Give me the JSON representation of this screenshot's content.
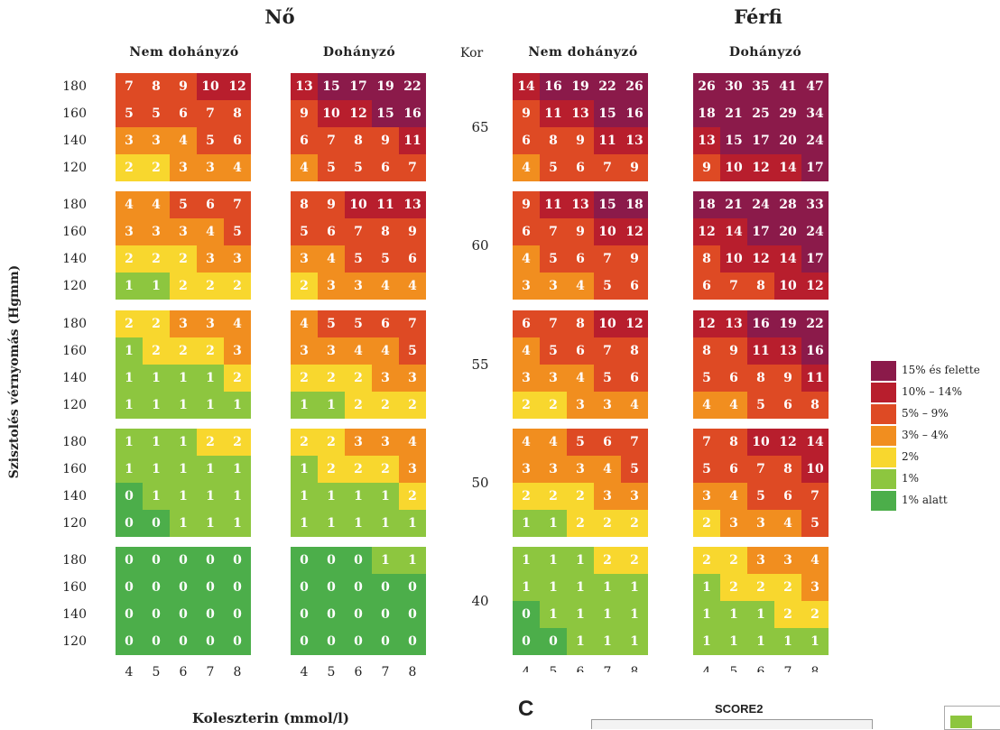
{
  "header": {
    "female": "Nő",
    "male": "Férfi",
    "nonsmoker": "Nem dohányzó",
    "smoker": "Dohányzó",
    "kor": "Kor"
  },
  "axis": {
    "ylabel": "Szisztolés vérnyomás (Hgmm)",
    "xlabel": "Koleszterin (mmol/l)",
    "bp_rows": [
      "180",
      "160",
      "140",
      "120"
    ],
    "chol_ticks": [
      "4",
      "5",
      "6",
      "7",
      "8"
    ]
  },
  "fragments": {
    "panel_c": "C",
    "score2": "SCORE2"
  },
  "legend": [
    {
      "label": "15% és felette",
      "color": "#8B1A4A"
    },
    {
      "label": "10% – 14%",
      "color": "#B81E2D"
    },
    {
      "label": "5% – 9%",
      "color": "#DE4A24"
    },
    {
      "label": "3% – 4%",
      "color": "#F18E1F"
    },
    {
      "label": "2%",
      "color": "#F8D72E"
    },
    {
      "label": "1%",
      "color": "#8DC63F"
    },
    {
      "label": "1% alatt",
      "color": "#4CAE4A"
    }
  ],
  "chart_data": {
    "type": "heatmap",
    "title": "",
    "xlabel": "Koleszterin (mmol/l)",
    "ylabel": "Szisztolés vérnyomás (Hgmm)",
    "x_categories": [
      "4",
      "5",
      "6",
      "7",
      "8"
    ],
    "y_categories": [
      "180",
      "160",
      "140",
      "120"
    ],
    "ages": [
      "65",
      "60",
      "55",
      "50",
      "40"
    ],
    "groups": [
      {
        "sex": "Nő",
        "smoking": "Nem dohányzó",
        "panels": [
          [
            [
              7,
              8,
              9,
              10,
              12
            ],
            [
              5,
              5,
              6,
              7,
              8
            ],
            [
              3,
              3,
              4,
              5,
              6
            ],
            [
              2,
              2,
              3,
              3,
              4
            ]
          ],
          [
            [
              4,
              4,
              5,
              6,
              7
            ],
            [
              3,
              3,
              3,
              4,
              5
            ],
            [
              2,
              2,
              2,
              3,
              3
            ],
            [
              1,
              1,
              2,
              2,
              2
            ]
          ],
          [
            [
              2,
              2,
              3,
              3,
              4
            ],
            [
              1,
              2,
              2,
              2,
              3
            ],
            [
              1,
              1,
              1,
              1,
              2
            ],
            [
              1,
              1,
              1,
              1,
              1
            ]
          ],
          [
            [
              1,
              1,
              1,
              2,
              2
            ],
            [
              1,
              1,
              1,
              1,
              1
            ],
            [
              0,
              1,
              1,
              1,
              1
            ],
            [
              0,
              0,
              1,
              1,
              1
            ]
          ],
          [
            [
              0,
              0,
              0,
              0,
              0
            ],
            [
              0,
              0,
              0,
              0,
              0
            ],
            [
              0,
              0,
              0,
              0,
              0
            ],
            [
              0,
              0,
              0,
              0,
              0
            ]
          ]
        ]
      },
      {
        "sex": "Nő",
        "smoking": "Dohányzó",
        "panels": [
          [
            [
              13,
              15,
              17,
              19,
              22
            ],
            [
              9,
              10,
              12,
              15,
              16
            ],
            [
              6,
              7,
              8,
              9,
              11
            ],
            [
              4,
              5,
              5,
              6,
              7
            ]
          ],
          [
            [
              8,
              9,
              10,
              11,
              13
            ],
            [
              5,
              6,
              7,
              8,
              9
            ],
            [
              3,
              4,
              5,
              5,
              6
            ],
            [
              2,
              3,
              3,
              4,
              4
            ]
          ],
          [
            [
              4,
              5,
              5,
              6,
              7
            ],
            [
              3,
              3,
              4,
              4,
              5
            ],
            [
              2,
              2,
              2,
              3,
              3
            ],
            [
              1,
              1,
              2,
              2,
              2
            ]
          ],
          [
            [
              2,
              2,
              3,
              3,
              4
            ],
            [
              1,
              2,
              2,
              2,
              3
            ],
            [
              1,
              1,
              1,
              1,
              2
            ],
            [
              1,
              1,
              1,
              1,
              1
            ]
          ],
          [
            [
              0,
              0,
              0,
              1,
              1
            ],
            [
              0,
              0,
              0,
              0,
              0
            ],
            [
              0,
              0,
              0,
              0,
              0
            ],
            [
              0,
              0,
              0,
              0,
              0
            ]
          ]
        ]
      },
      {
        "sex": "Férfi",
        "smoking": "Nem dohányzó",
        "panels": [
          [
            [
              14,
              16,
              19,
              22,
              26
            ],
            [
              9,
              11,
              13,
              15,
              16
            ],
            [
              6,
              8,
              9,
              11,
              13
            ],
            [
              4,
              5,
              6,
              7,
              9
            ]
          ],
          [
            [
              9,
              11,
              13,
              15,
              18
            ],
            [
              6,
              7,
              9,
              10,
              12
            ],
            [
              4,
              5,
              6,
              7,
              9
            ],
            [
              3,
              3,
              4,
              5,
              6
            ]
          ],
          [
            [
              6,
              7,
              8,
              10,
              12
            ],
            [
              4,
              5,
              6,
              7,
              8
            ],
            [
              3,
              3,
              4,
              5,
              6
            ],
            [
              2,
              2,
              3,
              3,
              4
            ]
          ],
          [
            [
              4,
              4,
              5,
              6,
              7
            ],
            [
              3,
              3,
              3,
              4,
              5
            ],
            [
              2,
              2,
              2,
              3,
              3
            ],
            [
              1,
              1,
              2,
              2,
              2
            ]
          ],
          [
            [
              1,
              1,
              1,
              2,
              2
            ],
            [
              1,
              1,
              1,
              1,
              1
            ],
            [
              0,
              1,
              1,
              1,
              1
            ],
            [
              0,
              0,
              1,
              1,
              1
            ]
          ]
        ]
      },
      {
        "sex": "Férfi",
        "smoking": "Dohányzó",
        "panels": [
          [
            [
              26,
              30,
              35,
              41,
              47
            ],
            [
              18,
              21,
              25,
              29,
              34
            ],
            [
              13,
              15,
              17,
              20,
              24
            ],
            [
              9,
              10,
              12,
              14,
              17
            ]
          ],
          [
            [
              18,
              21,
              24,
              28,
              33
            ],
            [
              12,
              14,
              17,
              20,
              24
            ],
            [
              8,
              10,
              12,
              14,
              17
            ],
            [
              6,
              7,
              8,
              10,
              12
            ]
          ],
          [
            [
              12,
              13,
              16,
              19,
              22
            ],
            [
              8,
              9,
              11,
              13,
              16
            ],
            [
              5,
              6,
              8,
              9,
              11
            ],
            [
              4,
              4,
              5,
              6,
              8
            ]
          ],
          [
            [
              7,
              8,
              10,
              12,
              14
            ],
            [
              5,
              6,
              7,
              8,
              10
            ],
            [
              3,
              4,
              5,
              6,
              7
            ],
            [
              2,
              3,
              3,
              4,
              5
            ]
          ],
          [
            [
              2,
              2,
              3,
              3,
              4
            ],
            [
              1,
              2,
              2,
              2,
              3
            ],
            [
              1,
              1,
              1,
              2,
              2
            ],
            [
              1,
              1,
              1,
              1,
              1
            ]
          ]
        ]
      }
    ],
    "color_scale": [
      "#8B1A4A",
      "#B81E2D",
      "#DE4A24",
      "#F18E1F",
      "#F8D72E",
      "#8DC63F",
      "#4CAE4A"
    ]
  }
}
